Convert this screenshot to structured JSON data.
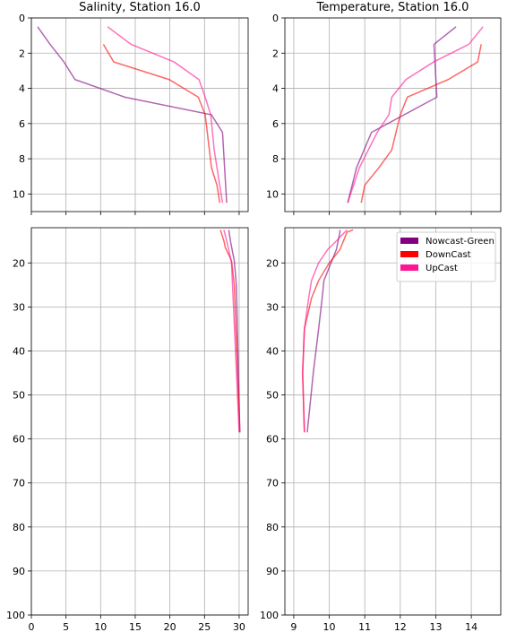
{
  "chart_data": [
    {
      "type": "line",
      "title": "Salinity, Station 16.0",
      "xlim": [
        0,
        31.3
      ],
      "ylim": [
        0,
        11
      ],
      "invert_y": true,
      "grid": true,
      "show_xtick_labels": false,
      "xticks": [
        0,
        5,
        10,
        15,
        20,
        25,
        30
      ],
      "yticks": [
        0,
        2,
        4,
        6,
        8,
        10
      ],
      "alpha": 0.6,
      "series": [
        {
          "color": "#800080",
          "x": [
            0.9,
            2.7,
            4.7,
            6.3,
            13.5,
            26,
            27.6,
            27.9,
            28.2
          ],
          "values": [
            0.5,
            1.5,
            2.5,
            3.5,
            4.5,
            5.5,
            6.5,
            8.5,
            10.5
          ]
        },
        {
          "color": "#ff0000",
          "x": [
            10.4,
            11.9,
            19.9,
            24.1,
            25.1,
            25.4,
            26,
            26.8,
            27.2
          ],
          "values": [
            1.5,
            2.5,
            3.5,
            4.5,
            5.5,
            6.5,
            8.5,
            9.5,
            10.5
          ]
        },
        {
          "color": "#ff1493",
          "x": [
            11,
            14.4,
            20.6,
            24.2,
            25.1,
            25.9,
            26.4,
            26.8,
            27.6
          ],
          "values": [
            0.5,
            1.5,
            2.5,
            3.5,
            4.5,
            5.5,
            7.5,
            8.5,
            10.5
          ]
        }
      ]
    },
    {
      "type": "line",
      "title": "Temperature, Station 16.0",
      "xlim": [
        8.75,
        14.83
      ],
      "ylim": [
        0,
        11
      ],
      "invert_y": true,
      "grid": true,
      "show_xtick_labels": false,
      "xticks": [
        9,
        10,
        11,
        12,
        13,
        14
      ],
      "yticks": [
        0,
        2,
        4,
        6,
        8,
        10
      ],
      "alpha": 0.6,
      "series": [
        {
          "color": "#800080",
          "x": [
            13.57,
            12.95,
            13.03,
            11.19,
            10.77,
            10.52
          ],
          "values": [
            0.5,
            1.5,
            4.5,
            6.5,
            8.5,
            10.5
          ]
        },
        {
          "color": "#ff0000",
          "x": [
            14.28,
            14.18,
            13.35,
            12.2,
            12.0,
            11.76,
            11.4,
            11.0,
            10.9
          ],
          "values": [
            1.5,
            2.5,
            3.5,
            4.5,
            5.5,
            7.5,
            8.5,
            9.5,
            10.5
          ]
        },
        {
          "color": "#ff1493",
          "x": [
            14.33,
            13.93,
            12.94,
            12.16,
            11.76,
            11.68,
            11.35,
            10.85,
            10.52
          ],
          "values": [
            0.5,
            1.5,
            2.5,
            3.5,
            4.5,
            5.5,
            6.5,
            8.5,
            10.5
          ]
        }
      ]
    },
    {
      "type": "line",
      "xlim": [
        0,
        31.3
      ],
      "ylim": [
        12,
        100
      ],
      "invert_y": true,
      "grid": true,
      "show_xtick_labels": true,
      "xticks": [
        0,
        5,
        10,
        15,
        20,
        25,
        30
      ],
      "yticks": [
        20,
        30,
        40,
        50,
        60,
        70,
        80,
        90,
        100
      ],
      "alpha": 0.6,
      "series": [
        {
          "color": "#800080",
          "x": [
            28.5,
            28.8,
            29.3,
            29.6,
            30.1
          ],
          "values": [
            12.5,
            15.5,
            19.5,
            25,
            58.5
          ]
        },
        {
          "color": "#ff0000",
          "x": [
            27.3,
            27.8,
            28,
            28.9,
            29.3,
            30.1
          ],
          "values": [
            12.5,
            15,
            16.5,
            19.5,
            25,
            58.5
          ]
        },
        {
          "color": "#ff1493",
          "x": [
            27.8,
            28.2,
            28.5,
            28.9,
            30.0
          ],
          "values": [
            12.5,
            15,
            17,
            20,
            58.5
          ]
        }
      ]
    },
    {
      "type": "line",
      "xlim": [
        8.75,
        14.83
      ],
      "ylim": [
        12,
        100
      ],
      "invert_y": true,
      "grid": true,
      "show_xtick_labels": true,
      "legend": "upper right",
      "xticks": [
        9,
        10,
        11,
        12,
        13,
        14
      ],
      "yticks": [
        20,
        30,
        40,
        50,
        60,
        70,
        80,
        90,
        100
      ],
      "alpha": 0.6,
      "series": [
        {
          "name": "Nowcast-Green",
          "color": "#800080",
          "x": [
            10.3,
            10.3,
            10.2,
            10.05,
            9.85,
            9.8,
            9.7,
            9.55,
            9.38
          ],
          "values": [
            12.5,
            13,
            17,
            20,
            24,
            28,
            35,
            45,
            58.5
          ]
        },
        {
          "name": "DownCast",
          "color": "#ff0000",
          "x": [
            10.67,
            10.5,
            10.3,
            10.0,
            9.7,
            9.5,
            9.3,
            9.25,
            9.3
          ],
          "values": [
            12.5,
            13,
            17,
            20,
            24,
            28,
            35,
            45,
            58.5
          ]
        },
        {
          "name": "UpCast",
          "color": "#ff1493",
          "x": [
            10.5,
            10.2,
            9.95,
            9.7,
            9.5,
            9.42,
            9.3,
            9.25,
            9.3
          ],
          "values": [
            12.5,
            15,
            17,
            20,
            24,
            28,
            35,
            45,
            58.5
          ]
        }
      ]
    }
  ]
}
